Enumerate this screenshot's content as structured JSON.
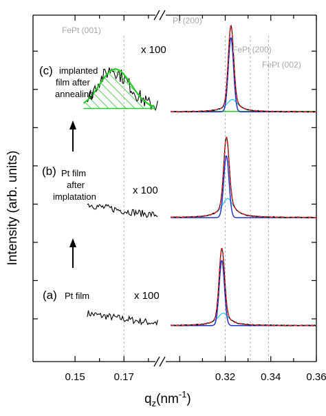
{
  "chart_data": {
    "type": "line",
    "xlabel_main": "q",
    "xlabel_sub": "z",
    "xlabel_unit_pre": "(nm",
    "xlabel_unit_sup": "-1",
    "xlabel_unit_post": ")",
    "ylabel": "Intensity (arb. units)",
    "x_ticks_left": [
      "0.15",
      "0.17"
    ],
    "x_ticks_right": [
      "0.32",
      "0.34",
      "0.36"
    ],
    "x_range_left": [
      0.139,
      0.184
    ],
    "x_range_right": [
      0.296,
      0.36
    ],
    "reference_lines": [
      {
        "label": "FePt (001)",
        "q": 0.17
      },
      {
        "label": "Pt (200)",
        "q": 0.32
      },
      {
        "label": "FePt (200)",
        "q": 0.331
      },
      {
        "label": "FePt (002)",
        "q": 0.339
      }
    ],
    "annotations": {
      "c_letter": "(c)",
      "c_line1": "implanted",
      "c_line2": "film after",
      "c_line3": "annealing",
      "b_letter": "(b)",
      "b_line1": "Pt film",
      "b_line2": "after",
      "b_line3": "implatation",
      "a_letter": "(a)",
      "a_line1": "Pt film",
      "scale_c": "x 100",
      "scale_b": "x 100",
      "scale_a": "x 100"
    },
    "panels": [
      {
        "name": "(a) Pt film",
        "baseline": 0.0,
        "low_q": {
          "x": [
            0.155,
            0.16,
            0.165,
            0.17,
            0.175,
            0.18,
            0.184
          ],
          "y": [
            0.55,
            0.45,
            0.38,
            0.3,
            0.22,
            0.15,
            0.12
          ]
        },
        "peak_center": 0.3185,
        "peak_height": 3.3,
        "broad_height": 0.55,
        "narrow_height": 2.9
      },
      {
        "name": "(b) Pt film after implatation",
        "baseline": 4.8,
        "low_q": {
          "x": [
            0.155,
            0.16,
            0.165,
            0.17,
            0.175,
            0.18,
            0.184
          ],
          "y": [
            0.6,
            0.48,
            0.4,
            0.3,
            0.22,
            0.15,
            0.12
          ]
        },
        "peak_center": 0.3205,
        "peak_height": 3.45,
        "broad_height": 0.85,
        "narrow_height": 2.75
      },
      {
        "name": "(c) implanted film after annealing",
        "baseline": 9.5,
        "low_q": {
          "x": [
            0.155,
            0.16,
            0.165,
            0.17,
            0.175,
            0.18,
            0.184
          ],
          "y": [
            0.5,
            1.4,
            1.95,
            1.5,
            0.8,
            0.35,
            0.3
          ]
        },
        "peak_center": 0.3225,
        "peak_height": 3.75,
        "broad_height": 0.55,
        "narrow_height": 3.3
      }
    ],
    "y_range": [
      -1.6,
      13.8
    ]
  }
}
